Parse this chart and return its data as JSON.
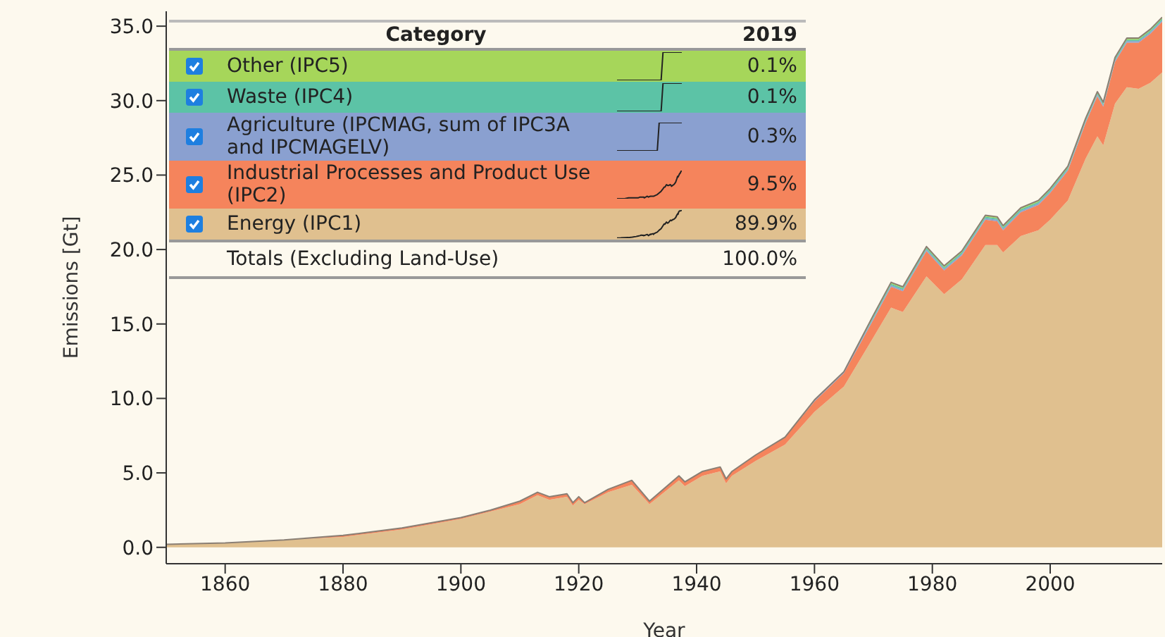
{
  "chart_data": {
    "type": "area",
    "stacked": true,
    "xlabel": "Year",
    "ylabel": "Emissions [Gt]",
    "x": [
      1850,
      1860,
      1870,
      1880,
      1890,
      1900,
      1905,
      1910,
      1913,
      1915,
      1918,
      1919,
      1920,
      1921,
      1925,
      1929,
      1932,
      1937,
      1938,
      1941,
      1944,
      1945,
      1946,
      1950,
      1955,
      1960,
      1965,
      1970,
      1973,
      1975,
      1979,
      1982,
      1985,
      1989,
      1991,
      1992,
      1995,
      1998,
      2000,
      2003,
      2006,
      2008,
      2009,
      2011,
      2013,
      2015,
      2017,
      2019
    ],
    "series": [
      {
        "name": "Energy (IPC1)",
        "color": "#e0c08f",
        "values": [
          0.2,
          0.3,
          0.5,
          0.7,
          1.2,
          1.9,
          2.4,
          2.9,
          3.5,
          3.2,
          3.4,
          2.8,
          3.2,
          2.9,
          3.7,
          4.2,
          2.9,
          4.5,
          4.1,
          4.8,
          5.1,
          4.3,
          4.8,
          5.8,
          6.9,
          9.1,
          10.8,
          14.1,
          16.1,
          15.8,
          18.2,
          17.0,
          18.0,
          20.3,
          20.3,
          19.8,
          20.9,
          21.3,
          22.0,
          23.3,
          26.1,
          27.6,
          27.0,
          29.8,
          30.9,
          30.8,
          31.2,
          31.9
        ]
      },
      {
        "name": "Industrial Processes and Product Use (IPC2)",
        "color": "#f5845c",
        "values": [
          0,
          0,
          0,
          0.1,
          0.1,
          0.1,
          0.1,
          0.2,
          0.2,
          0.2,
          0.2,
          0.2,
          0.2,
          0.1,
          0.2,
          0.3,
          0.2,
          0.3,
          0.3,
          0.3,
          0.3,
          0.3,
          0.3,
          0.4,
          0.5,
          0.7,
          0.9,
          1.2,
          1.4,
          1.4,
          1.7,
          1.6,
          1.6,
          1.7,
          1.6,
          1.5,
          1.6,
          1.7,
          1.8,
          2.0,
          2.4,
          2.7,
          2.6,
          2.8,
          3.0,
          3.1,
          3.3,
          3.4
        ]
      },
      {
        "name": "Agriculture (IPCMAG, sum of IPC3A and IPCMAGELV)",
        "color": "#8aa0d0",
        "values": [
          0,
          0,
          0,
          0,
          0,
          0,
          0,
          0,
          0,
          0,
          0,
          0,
          0,
          0,
          0,
          0,
          0,
          0,
          0,
          0,
          0,
          0,
          0,
          0,
          0,
          0.1,
          0.1,
          0.1,
          0.1,
          0.1,
          0.1,
          0.1,
          0.1,
          0.1,
          0.1,
          0.1,
          0.1,
          0.1,
          0.1,
          0.1,
          0.1,
          0.1,
          0.1,
          0.1,
          0.1,
          0.1,
          0.1,
          0.1
        ]
      },
      {
        "name": "Waste (IPC4)",
        "color": "#5cc3a6",
        "values": [
          0,
          0,
          0,
          0,
          0,
          0,
          0,
          0,
          0,
          0,
          0,
          0,
          0,
          0,
          0,
          0,
          0,
          0,
          0,
          0,
          0,
          0,
          0,
          0,
          0,
          0,
          0,
          0.1,
          0.1,
          0.1,
          0.1,
          0.1,
          0.1,
          0.1,
          0.1,
          0.1,
          0.1,
          0.1,
          0.1,
          0.1,
          0.1,
          0.1,
          0.1,
          0.1,
          0.1,
          0.1,
          0.1,
          0.1
        ]
      },
      {
        "name": "Other (IPC5)",
        "color": "#a6d65a",
        "values": [
          0,
          0,
          0,
          0,
          0,
          0,
          0,
          0,
          0,
          0,
          0,
          0,
          0,
          0,
          0,
          0,
          0,
          0,
          0,
          0,
          0,
          0,
          0,
          0,
          0,
          0,
          0,
          0.1,
          0.1,
          0.1,
          0.1,
          0.1,
          0.1,
          0.1,
          0.1,
          0.1,
          0.1,
          0.1,
          0.1,
          0.1,
          0.1,
          0.1,
          0.1,
          0.1,
          0.1,
          0.1,
          0.1,
          0.1
        ]
      }
    ],
    "xlim": [
      1850,
      2019
    ],
    "xticks": [
      1860,
      1880,
      1900,
      1920,
      1940,
      1960,
      1980,
      2000
    ],
    "ylim": [
      -1.1,
      36
    ],
    "yticks": [
      {
        "value": 0,
        "label": "0.0"
      },
      {
        "value": 5,
        "label": "5.0"
      },
      {
        "value": 10,
        "label": "10.0"
      },
      {
        "value": 15,
        "label": "15.0"
      },
      {
        "value": 20,
        "label": "20.0"
      },
      {
        "value": 25,
        "label": "25.0"
      },
      {
        "value": 30,
        "label": "30.0"
      },
      {
        "value": 35,
        "label": "35.0"
      }
    ],
    "legend": "top left",
    "annotations": [
      "Category",
      "2019",
      "0.1%",
      "0.1%",
      "0.3%",
      "9.5%",
      "89.9%",
      "Totals (Excluding Land-Use)",
      "100.0%"
    ]
  }
}
